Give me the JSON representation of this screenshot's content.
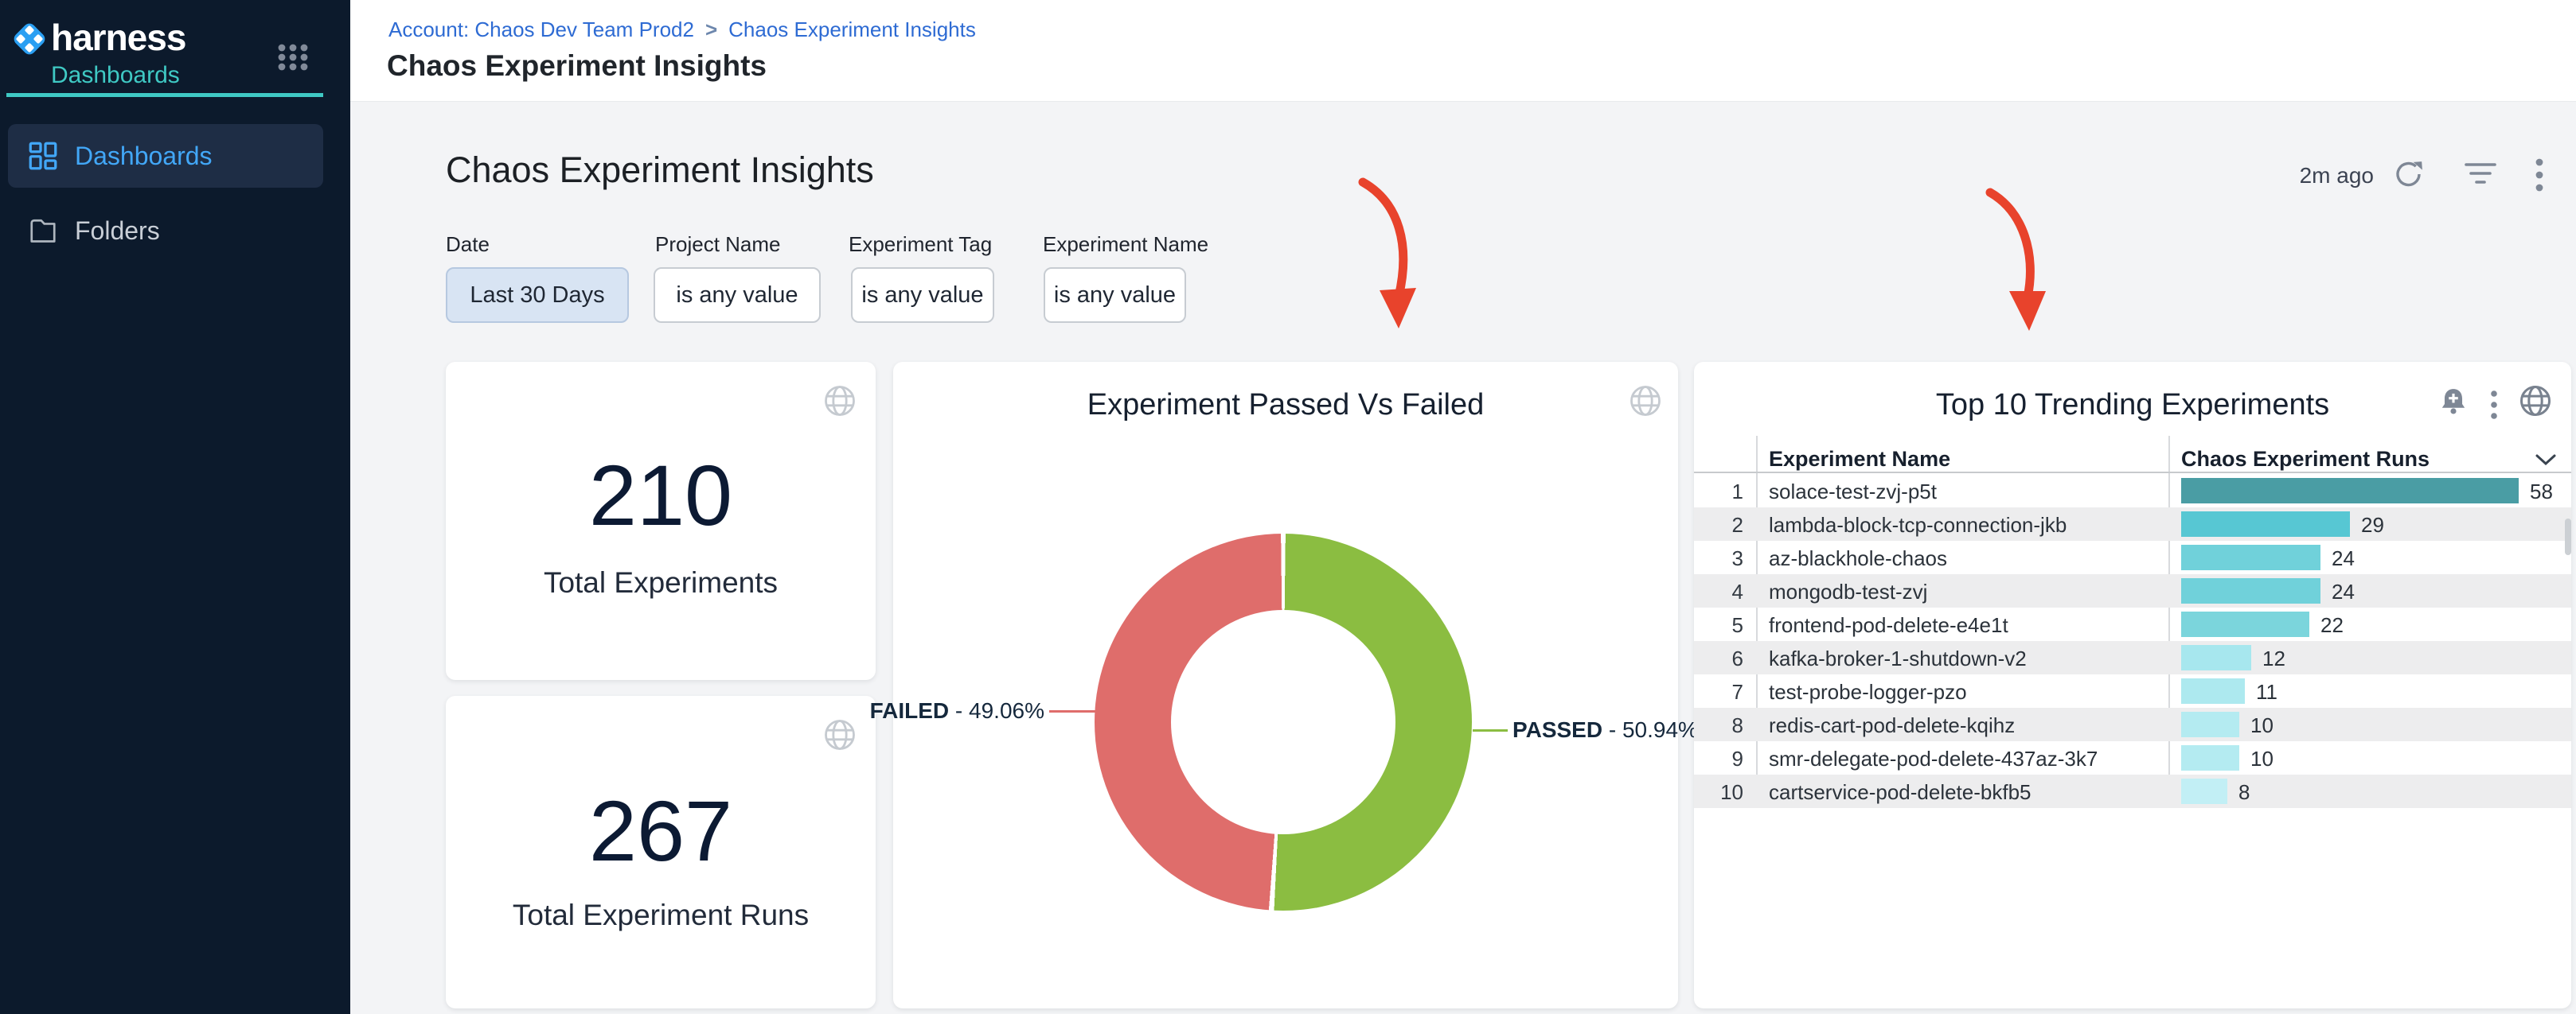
{
  "colors": {
    "brand_teal": "#3fc9c4",
    "nav_blue": "#42a7f7",
    "link_blue": "#2e6bd3",
    "annotation_red": "#e8432c"
  },
  "sidebar": {
    "brand": "harness",
    "module_label": "Dashboards",
    "nav": [
      {
        "label": "Dashboards",
        "active": true
      },
      {
        "label": "Folders",
        "active": false
      }
    ]
  },
  "header": {
    "breadcrumb": {
      "account": "Account: Chaos Dev Team Prod2",
      "separator": ">",
      "current": "Chaos Experiment Insights"
    },
    "page_title": "Chaos Experiment Insights"
  },
  "toolbar": {
    "heading": "Chaos Experiment Insights",
    "last_refreshed": "2m ago"
  },
  "filters": [
    {
      "label": "Date",
      "value": "Last 30 Days",
      "active": true
    },
    {
      "label": "Project Name",
      "value": "is any value",
      "active": false
    },
    {
      "label": "Experiment Tag",
      "value": "is any value",
      "active": false
    },
    {
      "label": "Experiment Name",
      "value": "is any value",
      "active": false
    }
  ],
  "stat_cards": [
    {
      "value": "210",
      "label": "Total Experiments"
    },
    {
      "value": "267",
      "label": "Total Experiment Runs"
    }
  ],
  "chart_data": [
    {
      "type": "pie",
      "donut": true,
      "title": "Experiment Passed Vs Failed",
      "labels": [
        "FAILED",
        "PASSED"
      ],
      "values": [
        49.06,
        50.94
      ],
      "colors": [
        "#df6d6b",
        "#8bbd41"
      ],
      "label_separator": " - ",
      "callouts": [
        {
          "name": "FAILED",
          "value_text": "49.06%"
        },
        {
          "name": "PASSED",
          "value_text": "50.94%"
        }
      ],
      "legend_position": "callout-lines",
      "start_angle_deg": 0
    },
    {
      "type": "bar",
      "orientation": "horizontal",
      "title": "Top 10 Trending Experiments",
      "columns": [
        "Experiment Name",
        "Chaos Experiment Runs"
      ],
      "categories": [
        "solace-test-zvj-p5t",
        "lambda-block-tcp-connection-jkb",
        "az-blackhole-chaos",
        "mongodb-test-zvj",
        "frontend-pod-delete-e4e1t",
        "kafka-broker-1-shutdown-v2",
        "test-probe-logger-pzo",
        "redis-cart-pod-delete-kqihz",
        "smr-delegate-pod-delete-437az-3k7",
        "cartservice-pod-delete-bkfb5"
      ],
      "values": [
        58,
        29,
        24,
        24,
        22,
        12,
        11,
        10,
        10,
        8
      ],
      "bar_colors": [
        "#4a9da4",
        "#57c7d3",
        "#70d1da",
        "#70d1da",
        "#7bd5dc",
        "#a7e7ee",
        "#ade9ef",
        "#b4ebf1",
        "#b4ebf1",
        "#c2eff5"
      ],
      "xlim": [
        0,
        60
      ],
      "grid": false
    }
  ]
}
